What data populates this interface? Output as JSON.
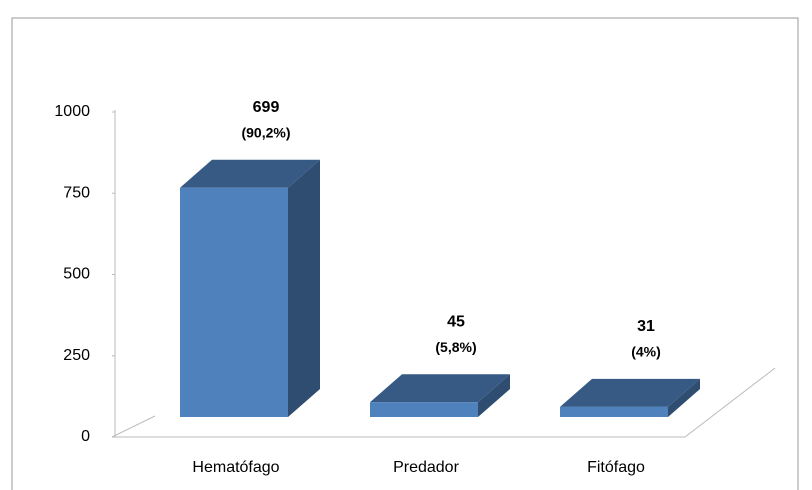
{
  "chart_data": {
    "type": "bar3d",
    "categories": [
      "Hematófago",
      "Predador",
      "Fitófago"
    ],
    "values": [
      699,
      45,
      31
    ],
    "share_labels": [
      "(90,2%)",
      "(5,8%)",
      "(4%)"
    ],
    "ylim": [
      0,
      1000
    ],
    "yticks": [
      0,
      250,
      500,
      750,
      1000
    ],
    "color": "#4f81bd"
  }
}
